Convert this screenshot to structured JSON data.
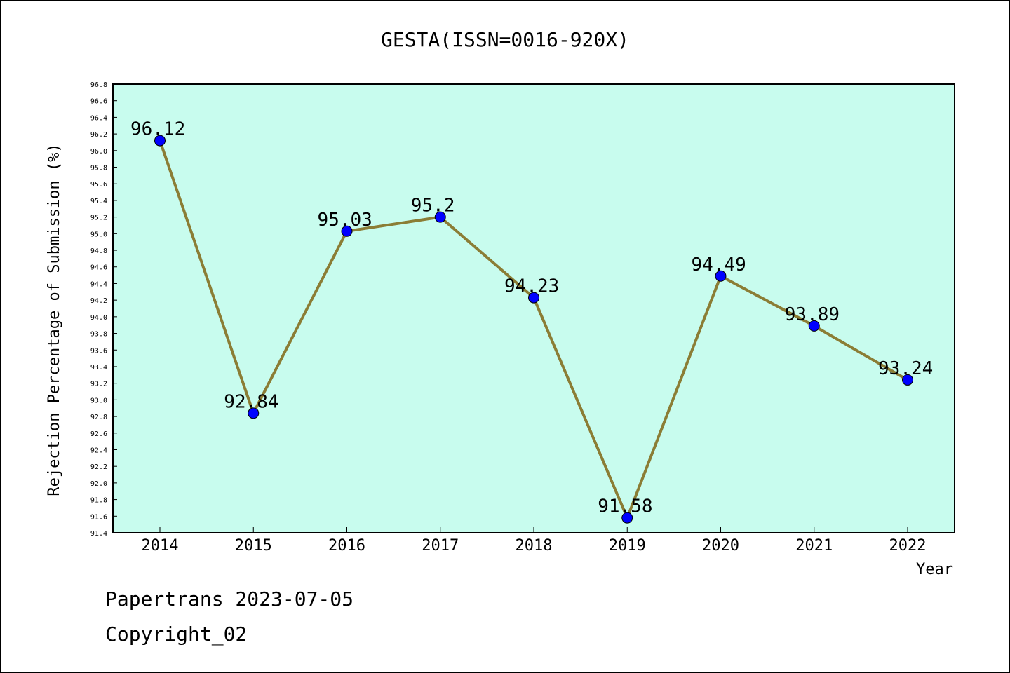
{
  "chart_data": {
    "type": "line",
    "title": "GESTA(ISSN=0016-920X)",
    "xlabel": "Year",
    "ylabel": "Rejection Percentage of Submission (%)",
    "categories": [
      "2014",
      "2015",
      "2016",
      "2017",
      "2018",
      "2019",
      "2020",
      "2021",
      "2022"
    ],
    "values": [
      96.12,
      92.84,
      95.03,
      95.2,
      94.23,
      91.58,
      94.49,
      93.89,
      93.24
    ],
    "data_labels": [
      "96.12",
      "92.84",
      "95.03",
      "95.2",
      "94.23",
      "91.58",
      "94.49",
      "93.89",
      "93.24"
    ],
    "ylim": [
      91.4,
      96.8
    ],
    "ytick_step": 0.2,
    "grid": false,
    "colors": {
      "background": "#c8fcee",
      "line": "#8b7d35",
      "marker": "#0000ff"
    }
  },
  "footer": {
    "line1": "Papertrans 2023-07-05",
    "line2": "Copyright_02"
  }
}
